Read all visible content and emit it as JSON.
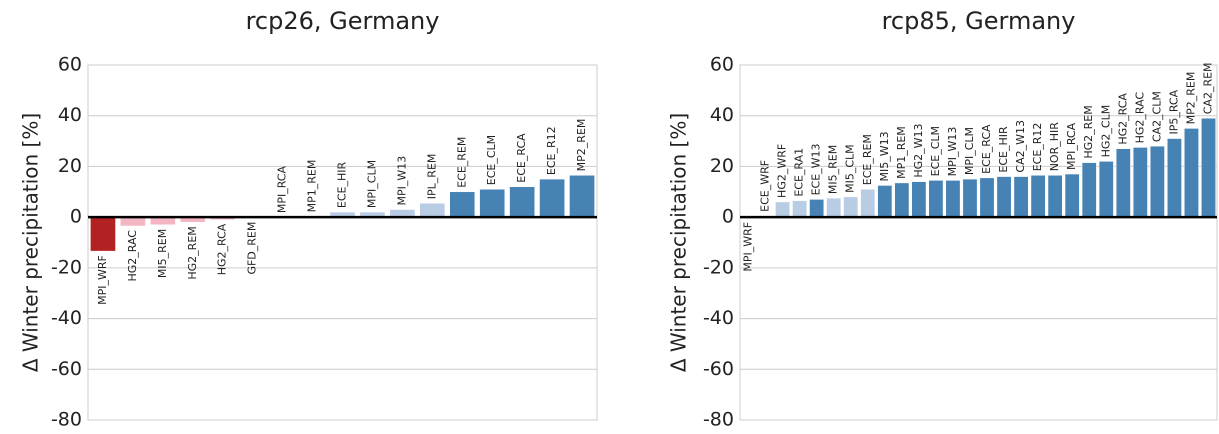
{
  "chart_data": [
    {
      "type": "bar",
      "title": "rcp26, Germany",
      "ylabel": "Δ Winter precipitation [%]",
      "categories": [
        "MPI_WRF",
        "HG2_RAC",
        "MI5_REM",
        "HG2_REM",
        "HG2_RCA",
        "GFD_REM",
        "MPI_RCA",
        "MP1_REM",
        "ECE_HIR",
        "MPI_CLM",
        "MPI_W13",
        "IPL_REM",
        "ECE_REM",
        "ECE_CLM",
        "ECE_RCA",
        "ECE_R12",
        "MP2_REM"
      ],
      "values": [
        -13.4,
        -3.5,
        -3,
        -2,
        -1,
        -0.2,
        0,
        0.3,
        2,
        2,
        3,
        5.5,
        10,
        11,
        12,
        15,
        16.5
      ],
      "colors": [
        "#b22222",
        "#f4b6c2",
        "#f4b6c2",
        "#f4b6c2",
        "#f4b6c2",
        "#f4b6c2",
        "#b8cce4",
        "#b8cce4",
        "#b8cce4",
        "#b8cce4",
        "#b8cce4",
        "#b8cce4",
        "#4682b4",
        "#4682b4",
        "#4682b4",
        "#4682b4",
        "#4682b4"
      ],
      "ylim": [
        -80,
        60
      ],
      "yticks": [
        -80,
        -60,
        -40,
        -20,
        0,
        20,
        40,
        60
      ],
      "grid": true
    },
    {
      "type": "bar",
      "title": "rcp85, Germany",
      "ylabel": "Δ Winter precipitation [%]",
      "categories": [
        "MPI_WRF",
        "ECE_WRF",
        "HG2_WRF",
        "ECE_RA1",
        "ECE_W13",
        "MI5_REM",
        "MI5_CLM",
        "ECE_REM",
        "MI5_W13",
        "MP1_REM",
        "HG2_W13",
        "ECE_CLM",
        "MPI_W13",
        "MPI_CLM",
        "ECE_RCA",
        "ECE_HIR",
        "CA2_W13",
        "ECE_R12",
        "NOR_HIR",
        "MPI_RCA",
        "HG2_REM",
        "HG2_CLM",
        "HG2_RCA",
        "HG2_RAC",
        "CA2_CLM",
        "IP5_RCA",
        "MP2_REM",
        "CA2_REM"
      ],
      "values": [
        -0.3,
        0.5,
        6,
        6.5,
        7,
        7.5,
        8,
        11,
        12.5,
        13.5,
        14,
        14.5,
        14.5,
        15,
        15.5,
        16,
        16,
        16.5,
        16.5,
        17,
        21.5,
        22,
        27,
        27.5,
        28,
        31,
        35,
        39
      ],
      "colors": [
        "#f4b6c2",
        "#b8cce4",
        "#b8cce4",
        "#b8cce4",
        "#4682b4",
        "#b8cce4",
        "#b8cce4",
        "#b8cce4",
        "#4682b4",
        "#4682b4",
        "#4682b4",
        "#4682b4",
        "#4682b4",
        "#4682b4",
        "#4682b4",
        "#4682b4",
        "#4682b4",
        "#4682b4",
        "#4682b4",
        "#4682b4",
        "#4682b4",
        "#4682b4",
        "#4682b4",
        "#4682b4",
        "#4682b4",
        "#4682b4",
        "#4682b4",
        "#4682b4"
      ],
      "ylim": [
        -80,
        60
      ],
      "yticks": [
        -80,
        -60,
        -40,
        -20,
        0,
        20,
        40,
        60
      ],
      "grid": true
    }
  ]
}
